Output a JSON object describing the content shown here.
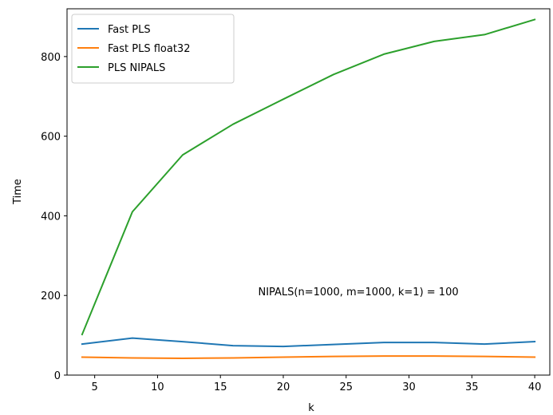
{
  "chart_data": {
    "type": "line",
    "xlabel": "k",
    "ylabel": "Time",
    "xlim": [
      2.8,
      41.2
    ],
    "ylim": [
      0,
      920
    ],
    "xticks": [
      5,
      10,
      15,
      20,
      25,
      30,
      35,
      40
    ],
    "yticks": [
      0,
      200,
      400,
      600,
      800
    ],
    "grid": false,
    "legend_position": "top-left",
    "annotation": {
      "text": "NIPALS(n=1000, m=1000, k=1) = 100",
      "x": 18,
      "y": 210
    },
    "x": [
      4,
      8,
      12,
      16,
      20,
      24,
      28,
      32,
      36,
      40
    ],
    "series": [
      {
        "name": "Fast PLS",
        "color": "#1f77b4",
        "values": [
          78,
          93,
          84,
          74,
          72,
          77,
          82,
          82,
          78,
          84
        ]
      },
      {
        "name": "Fast PLS float32",
        "color": "#ff7f0e",
        "values": [
          45,
          43,
          42,
          43,
          45,
          47,
          48,
          48,
          47,
          45
        ]
      },
      {
        "name": "PLS NIPALS",
        "color": "#2ca02c",
        "values": [
          102,
          410,
          553,
          630,
          693,
          755,
          806,
          838,
          855,
          893
        ]
      }
    ]
  }
}
